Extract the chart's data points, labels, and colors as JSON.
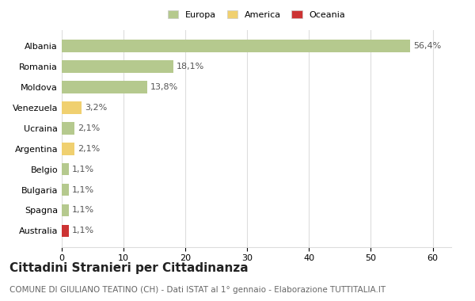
{
  "countries": [
    "Albania",
    "Romania",
    "Moldova",
    "Venezuela",
    "Ucraina",
    "Argentina",
    "Belgio",
    "Bulgaria",
    "Spagna",
    "Australia"
  ],
  "values": [
    56.4,
    18.1,
    13.8,
    3.2,
    2.1,
    2.1,
    1.1,
    1.1,
    1.1,
    1.1
  ],
  "labels": [
    "56,4%",
    "18,1%",
    "13,8%",
    "3,2%",
    "2,1%",
    "2,1%",
    "1,1%",
    "1,1%",
    "1,1%",
    "1,1%"
  ],
  "colors": [
    "#b5c98e",
    "#b5c98e",
    "#b5c98e",
    "#f0d070",
    "#b5c98e",
    "#f0d070",
    "#b5c98e",
    "#b5c98e",
    "#b5c98e",
    "#cc3333"
  ],
  "legend_labels": [
    "Europa",
    "America",
    "Oceania"
  ],
  "legend_colors": [
    "#b5c98e",
    "#f0d070",
    "#cc3333"
  ],
  "title": "Cittadini Stranieri per Cittadinanza",
  "subtitle": "COMUNE DI GIULIANO TEATINO (CH) - Dati ISTAT al 1° gennaio - Elaborazione TUTTITALIA.IT",
  "xlim": [
    0,
    63
  ],
  "xticks": [
    0,
    10,
    20,
    30,
    40,
    50,
    60
  ],
  "background_color": "#ffffff",
  "grid_color": "#dddddd",
  "title_fontsize": 11,
  "subtitle_fontsize": 7.5,
  "label_fontsize": 8,
  "tick_fontsize": 8
}
